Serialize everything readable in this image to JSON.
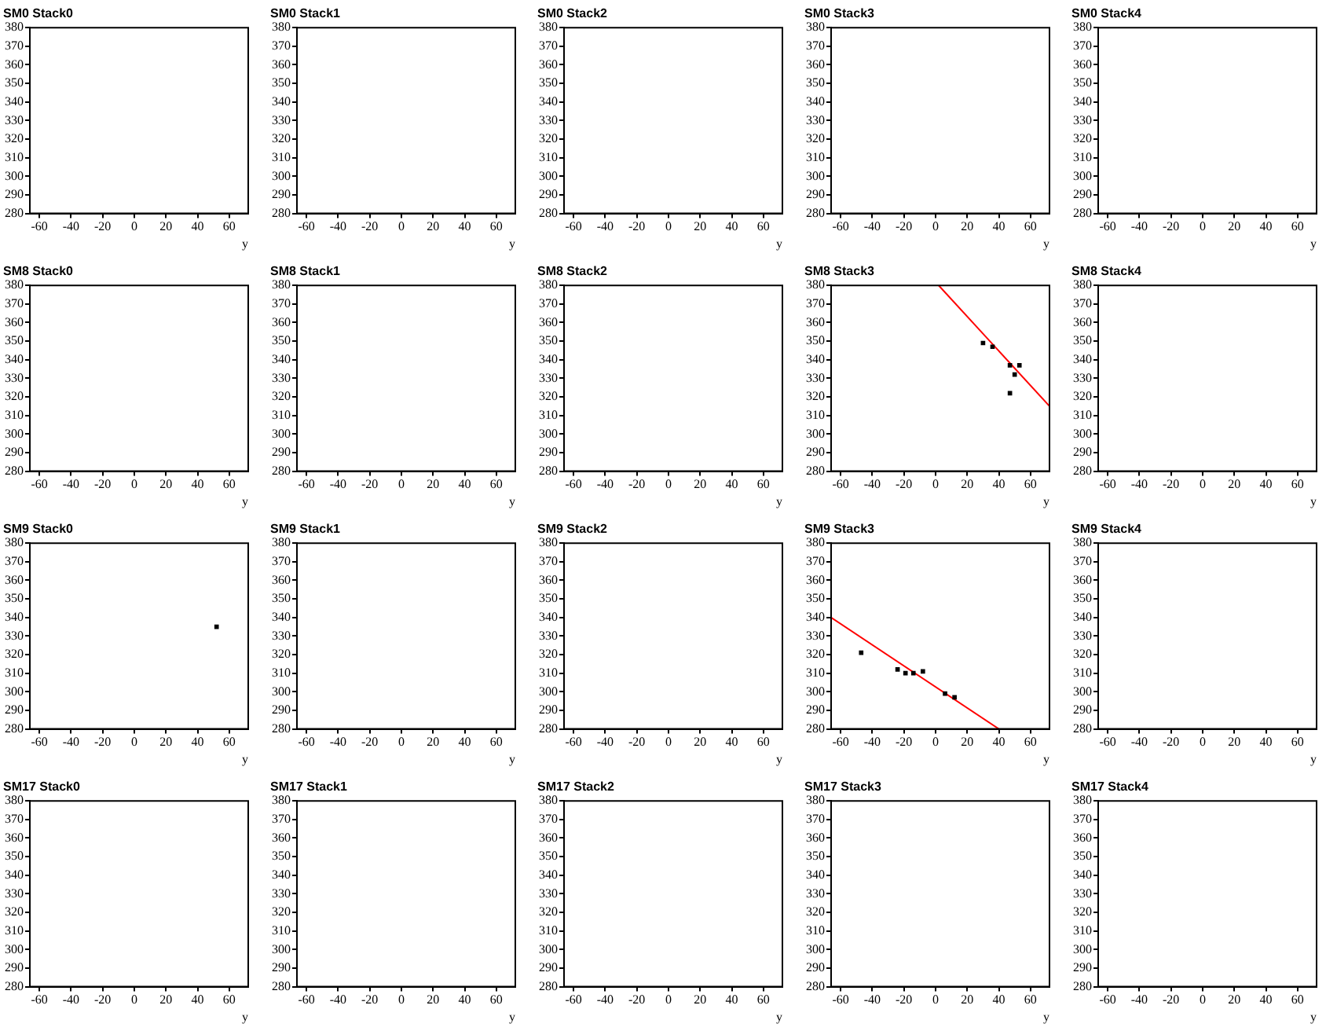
{
  "chart_data": [
    {
      "type": "scatter",
      "title": "SM0 Stack0",
      "xlabel": "y",
      "xlim": [
        -66,
        72
      ],
      "ylim": [
        280,
        380
      ],
      "xticks": [
        -60,
        -40,
        -20,
        0,
        20,
        40,
        60
      ],
      "yticks": [
        280,
        290,
        300,
        310,
        320,
        330,
        340,
        350,
        360,
        370,
        380
      ],
      "grid": false
    },
    {
      "type": "scatter",
      "title": "SM0 Stack1",
      "xlabel": "y",
      "xlim": [
        -66,
        72
      ],
      "ylim": [
        280,
        380
      ],
      "xticks": [
        -60,
        -40,
        -20,
        0,
        20,
        40,
        60
      ],
      "yticks": [
        280,
        290,
        300,
        310,
        320,
        330,
        340,
        350,
        360,
        370,
        380
      ],
      "grid": false
    },
    {
      "type": "scatter",
      "title": "SM0 Stack2",
      "xlabel": "y",
      "xlim": [
        -66,
        72
      ],
      "ylim": [
        280,
        380
      ],
      "xticks": [
        -60,
        -40,
        -20,
        0,
        20,
        40,
        60
      ],
      "yticks": [
        280,
        290,
        300,
        310,
        320,
        330,
        340,
        350,
        360,
        370,
        380
      ],
      "grid": false
    },
    {
      "type": "scatter",
      "title": "SM0 Stack3",
      "xlabel": "y",
      "xlim": [
        -66,
        72
      ],
      "ylim": [
        280,
        380
      ],
      "xticks": [
        -60,
        -40,
        -20,
        0,
        20,
        40,
        60
      ],
      "yticks": [
        280,
        290,
        300,
        310,
        320,
        330,
        340,
        350,
        360,
        370,
        380
      ],
      "grid": false
    },
    {
      "type": "scatter",
      "title": "SM0 Stack4",
      "xlabel": "y",
      "xlim": [
        -66,
        72
      ],
      "ylim": [
        280,
        380
      ],
      "xticks": [
        -60,
        -40,
        -20,
        0,
        20,
        40,
        60
      ],
      "yticks": [
        280,
        290,
        300,
        310,
        320,
        330,
        340,
        350,
        360,
        370,
        380
      ],
      "grid": false
    },
    {
      "type": "scatter",
      "title": "SM8 Stack0",
      "xlabel": "y",
      "xlim": [
        -66,
        72
      ],
      "ylim": [
        280,
        380
      ],
      "xticks": [
        -60,
        -40,
        -20,
        0,
        20,
        40,
        60
      ],
      "yticks": [
        280,
        290,
        300,
        310,
        320,
        330,
        340,
        350,
        360,
        370,
        380
      ],
      "grid": false
    },
    {
      "type": "scatter",
      "title": "SM8 Stack1",
      "xlabel": "y",
      "xlim": [
        -66,
        72
      ],
      "ylim": [
        280,
        380
      ],
      "xticks": [
        -60,
        -40,
        -20,
        0,
        20,
        40,
        60
      ],
      "yticks": [
        280,
        290,
        300,
        310,
        320,
        330,
        340,
        350,
        360,
        370,
        380
      ],
      "grid": false
    },
    {
      "type": "scatter",
      "title": "SM8 Stack2",
      "xlabel": "y",
      "xlim": [
        -66,
        72
      ],
      "ylim": [
        280,
        380
      ],
      "xticks": [
        -60,
        -40,
        -20,
        0,
        20,
        40,
        60
      ],
      "yticks": [
        280,
        290,
        300,
        310,
        320,
        330,
        340,
        350,
        360,
        370,
        380
      ],
      "grid": false
    },
    {
      "type": "scatter",
      "title": "SM8 Stack3",
      "xlabel": "y",
      "xlim": [
        -66,
        72
      ],
      "ylim": [
        280,
        380
      ],
      "xticks": [
        -60,
        -40,
        -20,
        0,
        20,
        40,
        60
      ],
      "yticks": [
        280,
        290,
        300,
        310,
        320,
        330,
        340,
        350,
        360,
        370,
        380
      ],
      "grid": false,
      "series": [
        {
          "color": "#000000",
          "marker": "square",
          "x": [
            30,
            36,
            47,
            53,
            50,
            47
          ],
          "values": [
            349,
            347,
            337,
            337,
            332,
            322
          ]
        },
        {
          "type": "line",
          "color": "#ff0000",
          "marker": "none",
          "x": [
            2,
            72
          ],
          "values": [
            380,
            315
          ]
        }
      ]
    },
    {
      "type": "scatter",
      "title": "SM8 Stack4",
      "xlabel": "y",
      "xlim": [
        -66,
        72
      ],
      "ylim": [
        280,
        380
      ],
      "xticks": [
        -60,
        -40,
        -20,
        0,
        20,
        40,
        60
      ],
      "yticks": [
        280,
        290,
        300,
        310,
        320,
        330,
        340,
        350,
        360,
        370,
        380
      ],
      "grid": false
    },
    {
      "type": "scatter",
      "title": "SM9 Stack0",
      "xlabel": "y",
      "xlim": [
        -66,
        72
      ],
      "ylim": [
        280,
        380
      ],
      "xticks": [
        -60,
        -40,
        -20,
        0,
        20,
        40,
        60
      ],
      "yticks": [
        280,
        290,
        300,
        310,
        320,
        330,
        340,
        350,
        360,
        370,
        380
      ],
      "grid": false,
      "series": [
        {
          "color": "#000000",
          "marker": "square",
          "x": [
            52
          ],
          "values": [
            335
          ]
        }
      ]
    },
    {
      "type": "scatter",
      "title": "SM9 Stack1",
      "xlabel": "y",
      "xlim": [
        -66,
        72
      ],
      "ylim": [
        280,
        380
      ],
      "xticks": [
        -60,
        -40,
        -20,
        0,
        20,
        40,
        60
      ],
      "yticks": [
        280,
        290,
        300,
        310,
        320,
        330,
        340,
        350,
        360,
        370,
        380
      ],
      "grid": false
    },
    {
      "type": "scatter",
      "title": "SM9 Stack2",
      "xlabel": "y",
      "xlim": [
        -66,
        72
      ],
      "ylim": [
        280,
        380
      ],
      "xticks": [
        -60,
        -40,
        -20,
        0,
        20,
        40,
        60
      ],
      "yticks": [
        280,
        290,
        300,
        310,
        320,
        330,
        340,
        350,
        360,
        370,
        380
      ],
      "grid": false
    },
    {
      "type": "scatter",
      "title": "SM9 Stack3",
      "xlabel": "y",
      "xlim": [
        -66,
        72
      ],
      "ylim": [
        280,
        380
      ],
      "xticks": [
        -60,
        -40,
        -20,
        0,
        20,
        40,
        60
      ],
      "yticks": [
        280,
        290,
        300,
        310,
        320,
        330,
        340,
        350,
        360,
        370,
        380
      ],
      "grid": false,
      "series": [
        {
          "color": "#000000",
          "marker": "square",
          "x": [
            -47,
            -24,
            -19,
            -14,
            -8,
            6,
            12
          ],
          "values": [
            321,
            312,
            310,
            310,
            311,
            299,
            297
          ]
        },
        {
          "type": "line",
          "color": "#ff0000",
          "marker": "none",
          "x": [
            -66,
            40
          ],
          "values": [
            340,
            280
          ]
        }
      ]
    },
    {
      "type": "scatter",
      "title": "SM9 Stack4",
      "xlabel": "y",
      "xlim": [
        -66,
        72
      ],
      "ylim": [
        280,
        380
      ],
      "xticks": [
        -60,
        -40,
        -20,
        0,
        20,
        40,
        60
      ],
      "yticks": [
        280,
        290,
        300,
        310,
        320,
        330,
        340,
        350,
        360,
        370,
        380
      ],
      "grid": false
    },
    {
      "type": "scatter",
      "title": "SM17 Stack0",
      "xlabel": "y",
      "xlim": [
        -66,
        72
      ],
      "ylim": [
        280,
        380
      ],
      "xticks": [
        -60,
        -40,
        -20,
        0,
        20,
        40,
        60
      ],
      "yticks": [
        280,
        290,
        300,
        310,
        320,
        330,
        340,
        350,
        360,
        370,
        380
      ],
      "grid": false
    },
    {
      "type": "scatter",
      "title": "SM17 Stack1",
      "xlabel": "y",
      "xlim": [
        -66,
        72
      ],
      "ylim": [
        280,
        380
      ],
      "xticks": [
        -60,
        -40,
        -20,
        0,
        20,
        40,
        60
      ],
      "yticks": [
        280,
        290,
        300,
        310,
        320,
        330,
        340,
        350,
        360,
        370,
        380
      ],
      "grid": false
    },
    {
      "type": "scatter",
      "title": "SM17 Stack2",
      "xlabel": "y",
      "xlim": [
        -66,
        72
      ],
      "ylim": [
        280,
        380
      ],
      "xticks": [
        -60,
        -40,
        -20,
        0,
        20,
        40,
        60
      ],
      "yticks": [
        280,
        290,
        300,
        310,
        320,
        330,
        340,
        350,
        360,
        370,
        380
      ],
      "grid": false
    },
    {
      "type": "scatter",
      "title": "SM17 Stack3",
      "xlabel": "y",
      "xlim": [
        -66,
        72
      ],
      "ylim": [
        280,
        380
      ],
      "xticks": [
        -60,
        -40,
        -20,
        0,
        20,
        40,
        60
      ],
      "yticks": [
        280,
        290,
        300,
        310,
        320,
        330,
        340,
        350,
        360,
        370,
        380
      ],
      "grid": false
    },
    {
      "type": "scatter",
      "title": "SM17 Stack4",
      "xlabel": "y",
      "xlim": [
        -66,
        72
      ],
      "ylim": [
        280,
        380
      ],
      "xticks": [
        -60,
        -40,
        -20,
        0,
        20,
        40,
        60
      ],
      "yticks": [
        280,
        290,
        300,
        310,
        320,
        330,
        340,
        350,
        360,
        370,
        380
      ],
      "grid": false
    }
  ]
}
